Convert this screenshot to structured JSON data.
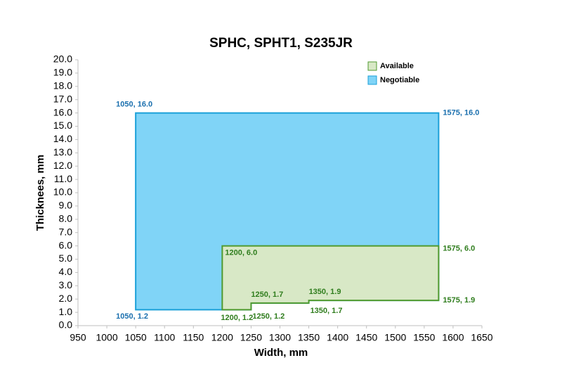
{
  "chart_data": {
    "type": "polygon",
    "title": "SPHC, SPHT1, S235JR",
    "x_label": "Width, mm",
    "y_label": "Thicknees, mm",
    "xlim": [
      950,
      1650
    ],
    "xticks": [
      950,
      1000,
      1050,
      1100,
      1150,
      1200,
      1250,
      1300,
      1350,
      1400,
      1450,
      1500,
      1550,
      1600,
      1650
    ],
    "ylim": [
      0,
      20
    ],
    "yticks": [
      {
        "value": 0,
        "label": "0.0"
      },
      {
        "value": 1,
        "label": "1.0"
      },
      {
        "value": 2,
        "label": "2.0"
      },
      {
        "value": 3,
        "label": "3.0"
      },
      {
        "value": 4,
        "label": "4.0"
      },
      {
        "value": 5,
        "label": "5.0"
      },
      {
        "value": 6,
        "label": "6.0"
      },
      {
        "value": 7,
        "label": "7.0"
      },
      {
        "value": 8,
        "label": "8.0"
      },
      {
        "value": 9,
        "label": "9.0"
      },
      {
        "value": 10,
        "label": "10.0"
      },
      {
        "value": 11,
        "label": "11.0"
      },
      {
        "value": 12,
        "label": "12.0"
      },
      {
        "value": 13,
        "label": "13.0"
      },
      {
        "value": 14,
        "label": "14.0"
      },
      {
        "value": 15,
        "label": "15.0"
      },
      {
        "value": 16,
        "label": "16.0"
      },
      {
        "value": 17,
        "label": "17.0"
      },
      {
        "value": 18,
        "label": "18.0"
      },
      {
        "value": 19,
        "label": "19.0"
      },
      {
        "value": 20,
        "label": "20.0"
      }
    ],
    "legend": "top-right",
    "series": [
      {
        "name": "Available",
        "color": "#d8e8c6",
        "edge_color": "#4f9a2f",
        "label_color": "#2f7d1d",
        "x": [
          1200,
          1200,
          1575,
          1575,
          1350,
          1350,
          1250,
          1250
        ],
        "values": [
          1.2,
          6.0,
          6.0,
          1.9,
          1.9,
          1.7,
          1.7,
          1.2
        ],
        "value_labels": [
          "1200, 1.2",
          "1200, 6.0",
          "1575, 6.0",
          "1575, 1.9",
          "1350, 1.9",
          "1350, 1.7",
          "1250, 1.7",
          "1250, 1.2"
        ]
      },
      {
        "name": "Negotiable",
        "color": "#80d4f7",
        "edge_color": "#1ba0d8",
        "label_color": "#1a6fae",
        "x": [
          1050,
          1050,
          1575,
          1575,
          1350,
          1350,
          1250,
          1250
        ],
        "values": [
          1.2,
          16.0,
          16.0,
          1.9,
          1.9,
          1.7,
          1.7,
          1.2
        ],
        "value_labels": [
          "1050, 1.2",
          "1050, 16.0",
          "1575, 16.0",
          null,
          null,
          null,
          null,
          null
        ]
      }
    ]
  }
}
